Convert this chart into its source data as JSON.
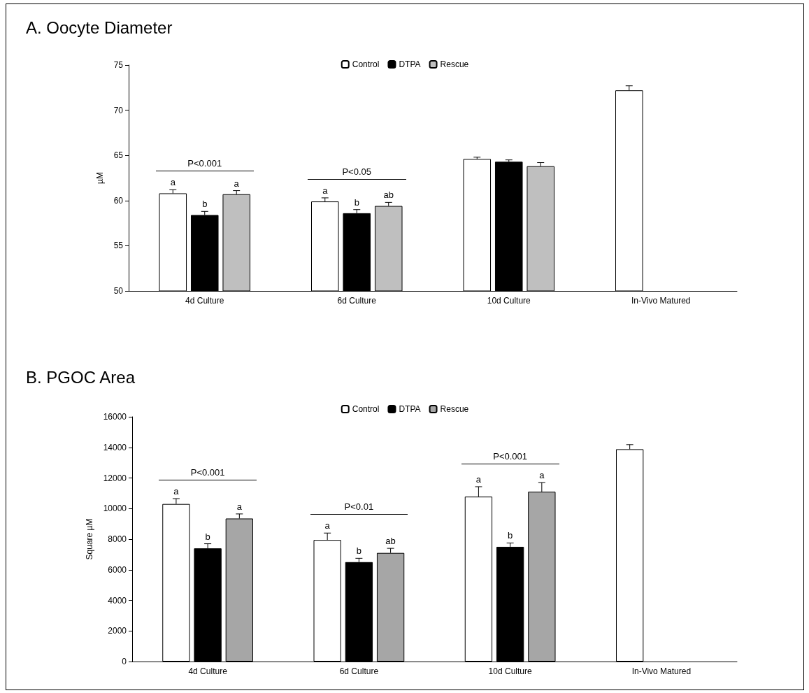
{
  "chart_data": [
    {
      "type": "bar",
      "title": "A. Oocyte Diameter",
      "ylabel": "µM",
      "categories": [
        "4d Culture",
        "6d Culture",
        "10d Culture",
        "In-Vivo Matured"
      ],
      "ylim": [
        50,
        75
      ],
      "yticks": [
        50,
        55,
        60,
        65,
        70,
        75
      ],
      "grid": false,
      "legend": "top",
      "series": [
        {
          "name": "Control",
          "color": "#ffffff",
          "values": [
            60.8,
            59.9,
            64.6,
            72.2
          ],
          "errors": [
            0.4,
            0.4,
            0.2,
            0.5
          ],
          "value_labels": [
            "a",
            "a",
            null,
            null
          ]
        },
        {
          "name": "DTPA",
          "color": "#000000",
          "values": [
            58.4,
            58.6,
            64.3,
            null
          ],
          "errors": [
            0.4,
            0.4,
            0.2,
            null
          ],
          "value_labels": [
            "b",
            "b",
            null,
            null
          ]
        },
        {
          "name": "Rescue",
          "color": "#bfbfbf",
          "values": [
            60.7,
            59.4,
            63.8,
            null
          ],
          "errors": [
            0.4,
            0.4,
            0.4,
            null
          ],
          "value_labels": [
            "a",
            "ab",
            null,
            null
          ]
        }
      ],
      "annotations": [
        "P<0.001",
        "P<0.05"
      ]
    },
    {
      "type": "bar",
      "title": "B. PGOC Area",
      "ylabel": "Square µM",
      "categories": [
        "4d Culture",
        "6d Culture",
        "10d Culture",
        "In-Vivo Matured"
      ],
      "ylim": [
        0,
        16000
      ],
      "yticks": [
        0,
        2000,
        4000,
        6000,
        8000,
        10000,
        12000,
        14000,
        16000
      ],
      "grid": false,
      "legend": "top",
      "series": [
        {
          "name": "Control",
          "color": "#ffffff",
          "values": [
            10300,
            7950,
            10780,
            13880
          ],
          "errors": [
            350,
            450,
            650,
            300
          ],
          "value_labels": [
            "a",
            "a",
            "a",
            null
          ]
        },
        {
          "name": "DTPA",
          "color": "#000000",
          "values": [
            7400,
            6500,
            7500,
            null
          ],
          "errors": [
            300,
            250,
            250,
            null
          ],
          "value_labels": [
            "b",
            "b",
            "b",
            null
          ]
        },
        {
          "name": "Rescue",
          "color": "#a6a6a6",
          "values": [
            9350,
            7100,
            11100,
            null
          ],
          "errors": [
            300,
            300,
            600,
            null
          ],
          "value_labels": [
            "a",
            "ab",
            "a",
            null
          ]
        }
      ],
      "annotations": [
        "P<0.001",
        "P<0.01",
        "P<0.001"
      ]
    }
  ]
}
